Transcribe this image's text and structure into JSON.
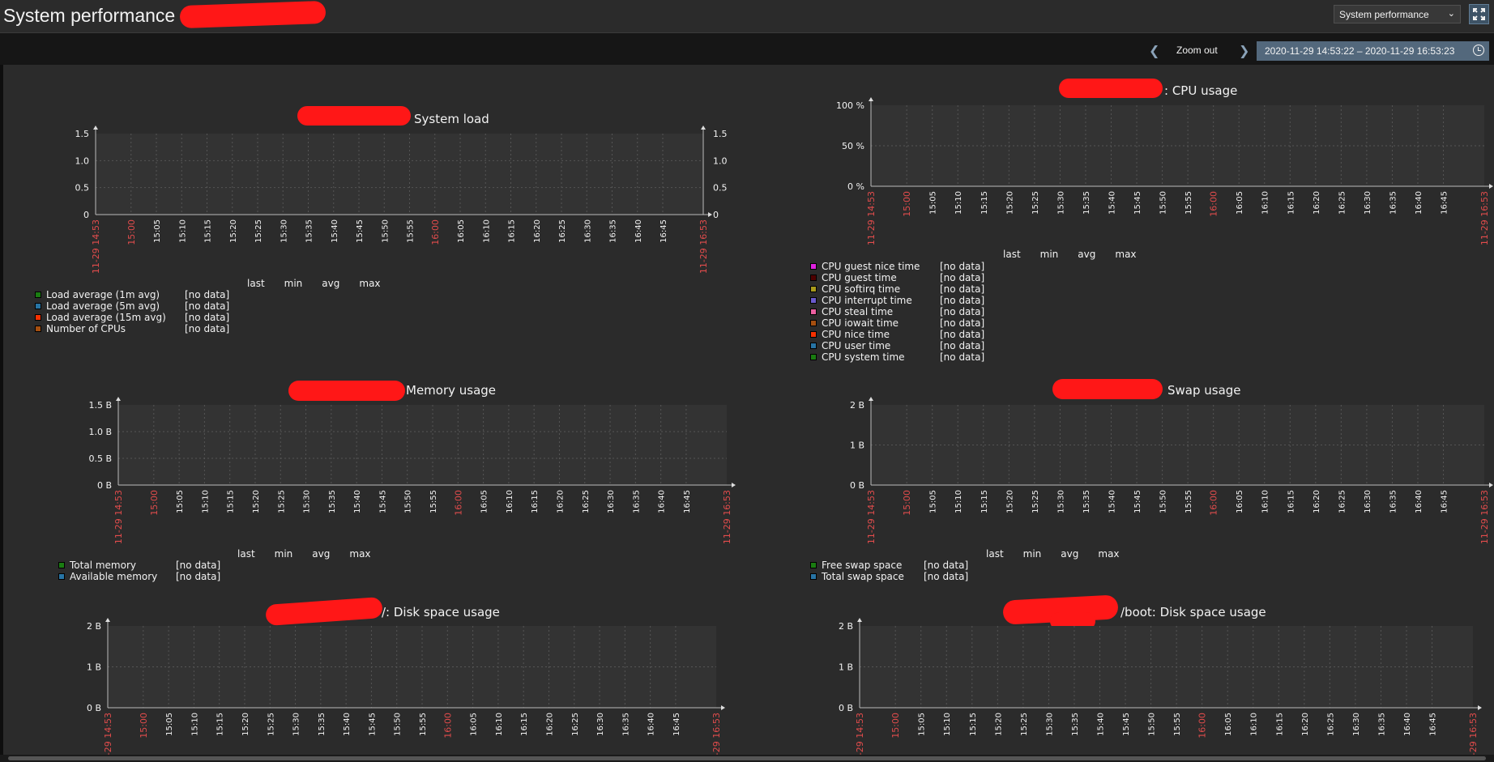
{
  "header": {
    "title": "System performance on",
    "dashboard_select": "System performance"
  },
  "filter": {
    "zoom_out": "Zoom out",
    "time_range": "2020-11-29 14:53:22 – 2020-11-29 16:53:23"
  },
  "colors": {
    "page": "#0e0e0e",
    "panel": "#2b2b2b",
    "plot": "#333333",
    "time_range_button": "#53687c",
    "date_tick": "#e24c4c"
  },
  "legend_columns": [
    "last",
    "min",
    "avg",
    "max"
  ],
  "time_ticks": [
    "11-29 14:53",
    "15:00",
    "15:05",
    "15:10",
    "15:15",
    "15:20",
    "15:25",
    "15:30",
    "15:35",
    "15:40",
    "15:45",
    "15:50",
    "15:55",
    "16:00",
    "16:05",
    "16:10",
    "16:15",
    "16:20",
    "16:25",
    "16:30",
    "16:35",
    "16:40",
    "16:45",
    "11-29 16:53"
  ],
  "graphs": [
    {
      "id": "system-load",
      "title": "System load",
      "y_ticks": [
        "1.5",
        "1.0",
        "0.5",
        "0"
      ],
      "right_axis": true,
      "legend": [
        {
          "name": "Load average (1m avg)",
          "color": "#1a7c11",
          "value": "[no data]"
        },
        {
          "name": "Load average (5m avg)",
          "color": "#2774a4",
          "value": "[no data]"
        },
        {
          "name": "Load average (15m avg)",
          "color": "#f63100",
          "value": "[no data]"
        },
        {
          "name": "Number of CPUs",
          "color": "#a54f10",
          "value": "[no data]"
        }
      ]
    },
    {
      "id": "cpu-usage",
      "title": ": CPU usage",
      "y_ticks": [
        "100 %",
        "50 %",
        "0 %"
      ],
      "right_axis": false,
      "legend": [
        {
          "name": "CPU guest nice time",
          "color": "#e021e0",
          "value": "[no data]"
        },
        {
          "name": "CPU guest time",
          "color": "#4d0000",
          "value": "[no data]"
        },
        {
          "name": "CPU softirq time",
          "color": "#a89a1c",
          "value": "[no data]"
        },
        {
          "name": "CPU interrupt time",
          "color": "#6a5acd",
          "value": "[no data]"
        },
        {
          "name": "CPU steal time",
          "color": "#ec5fa0",
          "value": "[no data]"
        },
        {
          "name": "CPU iowait time",
          "color": "#a54f10",
          "value": "[no data]"
        },
        {
          "name": "CPU nice time",
          "color": "#f63100",
          "value": "[no data]"
        },
        {
          "name": "CPU user time",
          "color": "#2774a4",
          "value": "[no data]"
        },
        {
          "name": "CPU system time",
          "color": "#1a7c11",
          "value": "[no data]"
        }
      ]
    },
    {
      "id": "memory-usage",
      "title": "Memory usage",
      "y_ticks": [
        "1.5 B",
        "1.0 B",
        "0.5 B",
        "0 B"
      ],
      "right_axis": false,
      "legend": [
        {
          "name": "Total memory",
          "color": "#1a7c11",
          "value": "[no data]"
        },
        {
          "name": "Available memory",
          "color": "#2774a4",
          "value": "[no data]"
        }
      ]
    },
    {
      "id": "swap-usage",
      "title": "Swap usage",
      "y_ticks": [
        "2 B",
        "1 B",
        "0 B"
      ],
      "right_axis": false,
      "legend": [
        {
          "name": "Free swap space",
          "color": "#1a7c11",
          "value": "[no data]"
        },
        {
          "name": "Total swap space",
          "color": "#2774a4",
          "value": "[no data]"
        }
      ]
    },
    {
      "id": "root-disk",
      "title": "/: Disk space usage",
      "y_ticks": [
        "2 B",
        "1 B",
        "0 B"
      ],
      "right_axis": false,
      "legend": []
    },
    {
      "id": "boot-disk",
      "title": "/boot: Disk space usage",
      "y_ticks": [
        "2 B",
        "1 B",
        "0 B"
      ],
      "right_axis": false,
      "legend": []
    }
  ]
}
